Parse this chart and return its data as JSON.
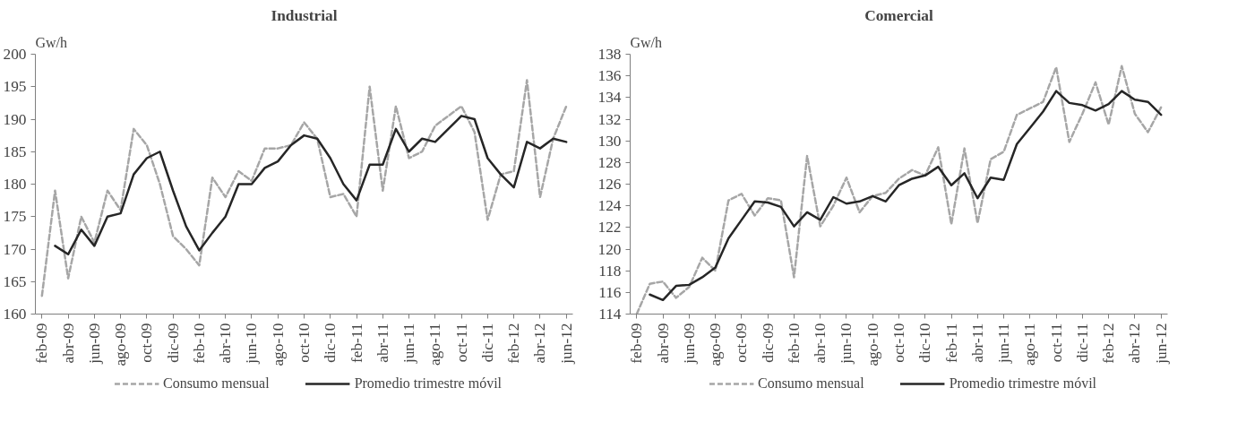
{
  "chart_data": [
    {
      "type": "line",
      "title": "Industrial",
      "ylabel": "Gw/h",
      "legend": "bottom",
      "categories": [
        "feb-09",
        null,
        "abr-09",
        null,
        "jun-09",
        null,
        "ago-09",
        null,
        "oct-09",
        null,
        "dic-09",
        null,
        "feb-10",
        null,
        "abr-10",
        null,
        "jun-10",
        null,
        "ago-10",
        null,
        "oct-10",
        null,
        "dic-10",
        null,
        "feb-11",
        null,
        "abr-11",
        null,
        "jun-11",
        null,
        "ago-11",
        null,
        "oct-11",
        null,
        "dic-11",
        null,
        "feb-12",
        null,
        "abr-12",
        null,
        "jun-12"
      ],
      "ylim": [
        160,
        200
      ],
      "yticks": [
        160,
        165,
        170,
        175,
        180,
        185,
        190,
        195,
        200
      ],
      "series": [
        {
          "name": "Consumo mensual",
          "color": "#a6a6a6",
          "line_style": "dashed",
          "values": [
            162.8,
            179,
            165.5,
            175,
            171,
            179,
            176,
            188.5,
            186,
            180,
            172,
            170,
            167.5,
            181,
            178,
            182,
            180.5,
            185.5,
            185.5,
            186,
            189.5,
            187,
            178,
            178.5,
            175,
            195,
            179,
            192,
            184,
            185,
            189,
            190.5,
            192,
            188,
            174.5,
            181.5,
            182,
            196,
            178,
            187,
            192
          ]
        },
        {
          "name": "Promedio trimestre móvil",
          "color": "#262626",
          "line_style": "solid",
          "values": [
            null,
            170.5,
            169.2,
            173,
            170.5,
            175,
            175.5,
            181.5,
            184,
            185,
            179,
            173.5,
            169.8,
            172.5,
            175,
            180,
            180,
            182.5,
            183.5,
            186,
            187.5,
            187,
            184,
            180,
            177.5,
            183,
            183,
            188.5,
            185,
            187,
            186.5,
            188.5,
            190.5,
            190,
            184,
            181.5,
            179.5,
            186.5,
            185.5,
            187,
            186.5
          ]
        }
      ]
    },
    {
      "type": "line",
      "title": "Comercial",
      "ylabel": "Gw/h",
      "legend": "bottom",
      "categories": [
        "feb-09",
        null,
        "abr-09",
        null,
        "jun-09",
        null,
        "ago-09",
        null,
        "oct-09",
        null,
        "dic-09",
        null,
        "feb-10",
        null,
        "abr-10",
        null,
        "jun-10",
        null,
        "ago-10",
        null,
        "oct-10",
        null,
        "dic-10",
        null,
        "feb-11",
        null,
        "abr-11",
        null,
        "jun-11",
        null,
        "ago-11",
        null,
        "oct-11",
        null,
        "dic-11",
        null,
        "feb-12",
        null,
        "abr-12",
        null,
        "jun-12"
      ],
      "ylim": [
        114,
        138
      ],
      "yticks": [
        114,
        116,
        118,
        120,
        122,
        124,
        126,
        128,
        130,
        132,
        134,
        136,
        138
      ],
      "series": [
        {
          "name": "Consumo mensual",
          "color": "#a6a6a6",
          "line_style": "dashed",
          "values": [
            114,
            116.8,
            117,
            115.5,
            116.5,
            119.2,
            118,
            124.5,
            125.1,
            123.1,
            124.7,
            124.5,
            117.4,
            128.6,
            122.1,
            124,
            126.6,
            123.4,
            124.9,
            125.2,
            126.5,
            127.3,
            126.8,
            129.4,
            122.3,
            129.3,
            122.4,
            128.3,
            129,
            132.4,
            133,
            133.6,
            136.8,
            129.9,
            132.5,
            135.4,
            131.5,
            136.9,
            132.5,
            130.8,
            133.1
          ]
        },
        {
          "name": "Promedio trimestre móvil",
          "color": "#262626",
          "line_style": "solid",
          "values": [
            null,
            115.8,
            115.3,
            116.6,
            116.7,
            117.4,
            118.3,
            121,
            122.7,
            124.4,
            124.3,
            123.9,
            122.1,
            123.4,
            122.7,
            124.8,
            124.2,
            124.4,
            124.9,
            124.4,
            125.9,
            126.5,
            126.8,
            127.6,
            125.9,
            127,
            124.7,
            126.6,
            126.4,
            129.7,
            131.2,
            132.7,
            134.6,
            133.5,
            133.3,
            132.8,
            133.4,
            134.6,
            133.8,
            133.6,
            132.4
          ]
        }
      ]
    }
  ]
}
